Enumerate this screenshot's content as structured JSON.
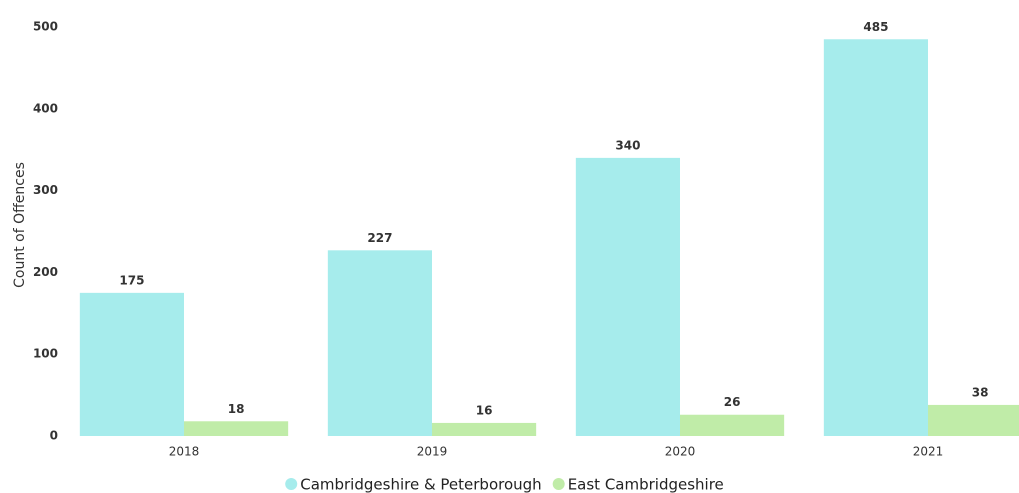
{
  "chart_data": {
    "type": "grouped_bar",
    "y_label": "Count of Offences",
    "categories": [
      "2018",
      "2019",
      "2020",
      "2021"
    ],
    "series": [
      {
        "name": "Cambridgeshire & Peterborough",
        "color": "#a6ecec",
        "values": [
          175,
          227,
          340,
          485
        ]
      },
      {
        "name": "East Cambridgeshire",
        "color": "#c0eca8",
        "values": [
          18,
          16,
          26,
          38
        ]
      }
    ],
    "ylim": [
      0,
      500
    ],
    "yticks": [
      0,
      100,
      200,
      300,
      400,
      500
    ],
    "grid": false,
    "legend": "bottom"
  }
}
